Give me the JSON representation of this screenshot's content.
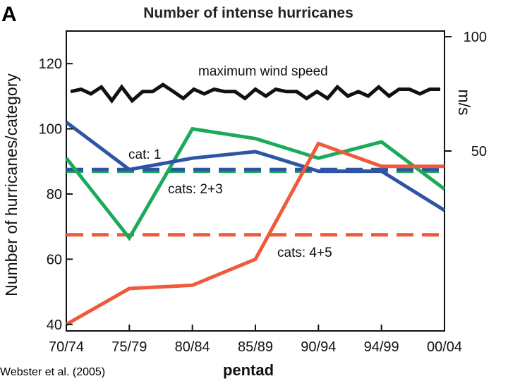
{
  "figure": {
    "panel_letter": "A",
    "credit": "Webster et al. (2005)"
  },
  "chart_data": {
    "type": "line",
    "title": "Number of intense hurricanes",
    "xlabel": "pentad",
    "ylabel": "Number of hurricanes/category",
    "y2label": "m/s",
    "categories": [
      "70/74",
      "75/79",
      "80/84",
      "85/89",
      "90/94",
      "94/99",
      "00/04"
    ],
    "ylim": [
      38,
      130
    ],
    "yticks": [
      40,
      60,
      80,
      100,
      120
    ],
    "y2lim": [
      45,
      100
    ],
    "y2ticks": [
      50,
      100
    ],
    "grid": false,
    "series": [
      {
        "name": "cat: 1",
        "style": "solid",
        "color": "#2e55a3",
        "values": [
          102,
          87.5,
          91,
          93,
          87,
          87,
          75
        ]
      },
      {
        "name": "cats: 2+3",
        "style": "solid",
        "color": "#1aaa5a",
        "values": [
          91,
          66.5,
          100,
          97,
          91,
          96,
          81.5
        ]
      },
      {
        "name": "cats: 4+5",
        "style": "solid",
        "color": "#ef5a3a",
        "values": [
          40,
          51,
          52,
          60,
          95.5,
          88.5,
          88.5
        ]
      },
      {
        "name": "cat: 1",
        "style": "dashed",
        "color": "#2e55a3",
        "values": [
          87.5,
          87.5,
          87.5,
          87.5,
          87.5,
          87.5,
          87.5
        ]
      },
      {
        "name": "cats: 2+3",
        "style": "dashed",
        "color": "#1aaa5a",
        "values": [
          87,
          87,
          87,
          87,
          87,
          87,
          87
        ]
      },
      {
        "name": "cats: 4+5",
        "style": "dashed",
        "color": "#ef5a3a",
        "values": [
          67.5,
          67.5,
          67.5,
          67.5,
          67.5,
          67.5,
          67.5
        ]
      },
      {
        "name": "maximum wind speed",
        "style": "solid",
        "color": "#111111",
        "axis": "right",
        "x": [
          0,
          0.17,
          0.33,
          0.5,
          0.67,
          0.83,
          1,
          1.17,
          1.33,
          1.5,
          1.67,
          1.83,
          2,
          2.17,
          2.33,
          2.5,
          2.67,
          2.83,
          3,
          3.17,
          3.33,
          3.5,
          3.67,
          3.83,
          4,
          4.17,
          4.33,
          4.5,
          4.67,
          4.83,
          5,
          5.17,
          5.33,
          5.5,
          5.67,
          5.83,
          6
        ],
        "values": [
          76,
          77,
          75,
          78,
          72,
          78,
          72,
          76,
          76,
          79,
          76,
          73,
          77,
          75,
          77,
          76,
          76,
          73,
          77,
          74,
          77,
          76,
          76,
          73,
          76,
          73,
          78,
          74,
          76,
          74,
          78,
          74,
          77,
          77,
          75,
          77,
          77
        ]
      }
    ],
    "annotations": [
      "maximum wind speed",
      "cat: 1",
      "cats: 2+3",
      "cats: 4+5"
    ]
  }
}
